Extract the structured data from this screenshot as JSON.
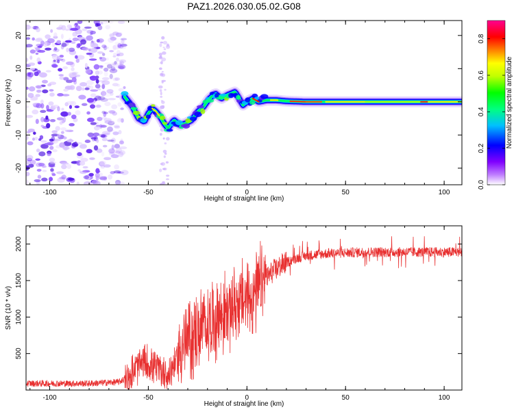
{
  "title": "PAZ1.2026.030.05.02.G08",
  "chart_data": [
    {
      "type": "heatmap",
      "title": "PAZ1.2026.030.05.02.G08",
      "xlabel": "Height of straight line (km)",
      "ylabel": "Frequency (Hz)",
      "xlim": [
        -112,
        109
      ],
      "ylim": [
        -25,
        24.5
      ],
      "xticks": [
        -100,
        -50,
        0,
        50,
        100
      ],
      "xtick_labels": [
        "-100",
        "-50",
        "0",
        "50",
        "100"
      ],
      "yticks": [
        -20,
        -10,
        0,
        10,
        20
      ],
      "ytick_labels": [
        "-20",
        "-10",
        "0",
        "10",
        "20"
      ],
      "colorbar": {
        "label": "Normalized spectral amplitude",
        "range": [
          0,
          0.9
        ],
        "ticks": [
          0.0,
          0.2,
          0.4,
          0.6,
          0.8
        ],
        "tick_labels": [
          "0.0",
          "0.2",
          "0.4",
          "0.6",
          "0.8"
        ],
        "colormap": [
          "#ffffff",
          "#a040ff",
          "#0000ff",
          "#00ffff",
          "#00ff00",
          "#ffff00",
          "#ff8000",
          "#ff0000",
          "#ff00a0"
        ]
      },
      "ridge": {
        "x": [
          -62,
          -58,
          -55,
          -52,
          -50,
          -48,
          -46,
          -44,
          -42,
          -40,
          -37,
          -34,
          -31,
          -28,
          -25,
          -22,
          -19,
          -16,
          -13,
          -10,
          -8,
          -6,
          -4,
          -2,
          0,
          3,
          6,
          10,
          15,
          20,
          30,
          50,
          70,
          90,
          109
        ],
        "y": [
          1.5,
          -1.5,
          -5,
          -6,
          -3.5,
          -2,
          -3,
          -4.5,
          -6.5,
          -8,
          -5.5,
          -7,
          -6.5,
          -5.5,
          -3,
          -1.5,
          1,
          2.5,
          1,
          2,
          2.5,
          3,
          1,
          -1,
          0,
          1,
          0,
          0.5,
          0.5,
          0.2,
          0,
          0,
          0,
          0,
          0
        ]
      },
      "noise_region_x": [
        -112,
        -62
      ]
    },
    {
      "type": "line",
      "xlabel": "Height of straight line (km)",
      "ylabel": "SNR (10 * v/v)",
      "xlim": [
        -112,
        109
      ],
      "ylim": [
        0,
        2250
      ],
      "xticks": [
        -100,
        -50,
        0,
        50,
        100
      ],
      "xtick_labels": [
        "-100",
        "-50",
        "0",
        "50",
        "100"
      ],
      "yticks": [
        500,
        1000,
        1500,
        2000
      ],
      "ytick_labels": [
        "500",
        "1000",
        "1500",
        "2000"
      ],
      "color": "#e83030",
      "envelope": {
        "x": [
          -112,
          -80,
          -65,
          -60,
          -56,
          -52,
          -48,
          -44,
          -40,
          -36,
          -32,
          -28,
          -24,
          -20,
          -16,
          -12,
          -8,
          -4,
          0,
          4,
          8,
          12,
          18,
          24,
          30,
          40,
          50,
          60,
          80,
          100,
          109
        ],
        "y": [
          90,
          90,
          110,
          180,
          300,
          380,
          330,
          270,
          200,
          400,
          650,
          700,
          820,
          900,
          980,
          1050,
          1120,
          1200,
          1250,
          1320,
          1450,
          1600,
          1720,
          1800,
          1840,
          1870,
          1880,
          1890,
          1890,
          1890,
          1890
        ]
      }
    }
  ]
}
